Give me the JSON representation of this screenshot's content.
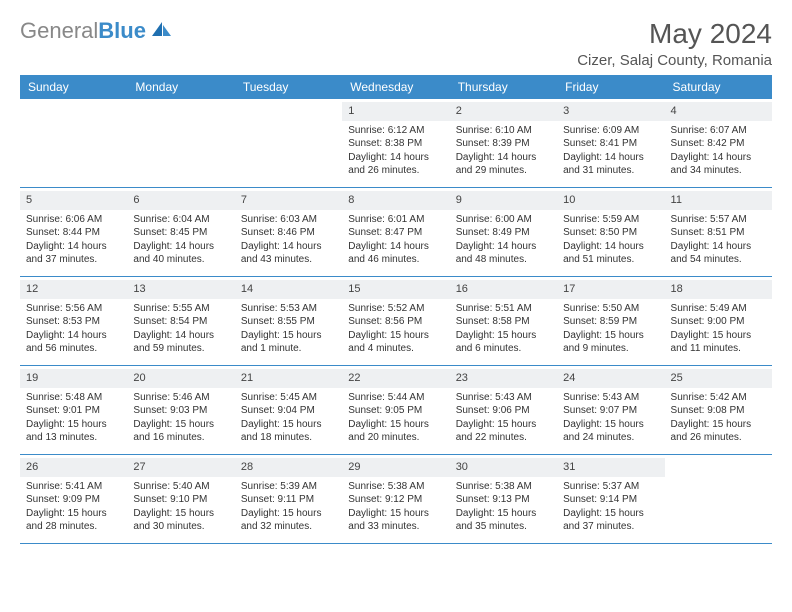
{
  "brand": {
    "word1": "General",
    "word2": "Blue"
  },
  "title": "May 2024",
  "location": "Cizer, Salaj County, Romania",
  "dayNames": [
    "Sunday",
    "Monday",
    "Tuesday",
    "Wednesday",
    "Thursday",
    "Friday",
    "Saturday"
  ],
  "colors": {
    "headerBar": "#3b8bc9",
    "dayNumBg": "#eef0f2",
    "text": "#333333",
    "logoGray": "#888888"
  },
  "weeks": [
    [
      {
        "n": "",
        "sr": "",
        "ss": "",
        "d1": "",
        "d2": ""
      },
      {
        "n": "",
        "sr": "",
        "ss": "",
        "d1": "",
        "d2": ""
      },
      {
        "n": "",
        "sr": "",
        "ss": "",
        "d1": "",
        "d2": ""
      },
      {
        "n": "1",
        "sr": "Sunrise: 6:12 AM",
        "ss": "Sunset: 8:38 PM",
        "d1": "Daylight: 14 hours",
        "d2": "and 26 minutes."
      },
      {
        "n": "2",
        "sr": "Sunrise: 6:10 AM",
        "ss": "Sunset: 8:39 PM",
        "d1": "Daylight: 14 hours",
        "d2": "and 29 minutes."
      },
      {
        "n": "3",
        "sr": "Sunrise: 6:09 AM",
        "ss": "Sunset: 8:41 PM",
        "d1": "Daylight: 14 hours",
        "d2": "and 31 minutes."
      },
      {
        "n": "4",
        "sr": "Sunrise: 6:07 AM",
        "ss": "Sunset: 8:42 PM",
        "d1": "Daylight: 14 hours",
        "d2": "and 34 minutes."
      }
    ],
    [
      {
        "n": "5",
        "sr": "Sunrise: 6:06 AM",
        "ss": "Sunset: 8:44 PM",
        "d1": "Daylight: 14 hours",
        "d2": "and 37 minutes."
      },
      {
        "n": "6",
        "sr": "Sunrise: 6:04 AM",
        "ss": "Sunset: 8:45 PM",
        "d1": "Daylight: 14 hours",
        "d2": "and 40 minutes."
      },
      {
        "n": "7",
        "sr": "Sunrise: 6:03 AM",
        "ss": "Sunset: 8:46 PM",
        "d1": "Daylight: 14 hours",
        "d2": "and 43 minutes."
      },
      {
        "n": "8",
        "sr": "Sunrise: 6:01 AM",
        "ss": "Sunset: 8:47 PM",
        "d1": "Daylight: 14 hours",
        "d2": "and 46 minutes."
      },
      {
        "n": "9",
        "sr": "Sunrise: 6:00 AM",
        "ss": "Sunset: 8:49 PM",
        "d1": "Daylight: 14 hours",
        "d2": "and 48 minutes."
      },
      {
        "n": "10",
        "sr": "Sunrise: 5:59 AM",
        "ss": "Sunset: 8:50 PM",
        "d1": "Daylight: 14 hours",
        "d2": "and 51 minutes."
      },
      {
        "n": "11",
        "sr": "Sunrise: 5:57 AM",
        "ss": "Sunset: 8:51 PM",
        "d1": "Daylight: 14 hours",
        "d2": "and 54 minutes."
      }
    ],
    [
      {
        "n": "12",
        "sr": "Sunrise: 5:56 AM",
        "ss": "Sunset: 8:53 PM",
        "d1": "Daylight: 14 hours",
        "d2": "and 56 minutes."
      },
      {
        "n": "13",
        "sr": "Sunrise: 5:55 AM",
        "ss": "Sunset: 8:54 PM",
        "d1": "Daylight: 14 hours",
        "d2": "and 59 minutes."
      },
      {
        "n": "14",
        "sr": "Sunrise: 5:53 AM",
        "ss": "Sunset: 8:55 PM",
        "d1": "Daylight: 15 hours",
        "d2": "and 1 minute."
      },
      {
        "n": "15",
        "sr": "Sunrise: 5:52 AM",
        "ss": "Sunset: 8:56 PM",
        "d1": "Daylight: 15 hours",
        "d2": "and 4 minutes."
      },
      {
        "n": "16",
        "sr": "Sunrise: 5:51 AM",
        "ss": "Sunset: 8:58 PM",
        "d1": "Daylight: 15 hours",
        "d2": "and 6 minutes."
      },
      {
        "n": "17",
        "sr": "Sunrise: 5:50 AM",
        "ss": "Sunset: 8:59 PM",
        "d1": "Daylight: 15 hours",
        "d2": "and 9 minutes."
      },
      {
        "n": "18",
        "sr": "Sunrise: 5:49 AM",
        "ss": "Sunset: 9:00 PM",
        "d1": "Daylight: 15 hours",
        "d2": "and 11 minutes."
      }
    ],
    [
      {
        "n": "19",
        "sr": "Sunrise: 5:48 AM",
        "ss": "Sunset: 9:01 PM",
        "d1": "Daylight: 15 hours",
        "d2": "and 13 minutes."
      },
      {
        "n": "20",
        "sr": "Sunrise: 5:46 AM",
        "ss": "Sunset: 9:03 PM",
        "d1": "Daylight: 15 hours",
        "d2": "and 16 minutes."
      },
      {
        "n": "21",
        "sr": "Sunrise: 5:45 AM",
        "ss": "Sunset: 9:04 PM",
        "d1": "Daylight: 15 hours",
        "d2": "and 18 minutes."
      },
      {
        "n": "22",
        "sr": "Sunrise: 5:44 AM",
        "ss": "Sunset: 9:05 PM",
        "d1": "Daylight: 15 hours",
        "d2": "and 20 minutes."
      },
      {
        "n": "23",
        "sr": "Sunrise: 5:43 AM",
        "ss": "Sunset: 9:06 PM",
        "d1": "Daylight: 15 hours",
        "d2": "and 22 minutes."
      },
      {
        "n": "24",
        "sr": "Sunrise: 5:43 AM",
        "ss": "Sunset: 9:07 PM",
        "d1": "Daylight: 15 hours",
        "d2": "and 24 minutes."
      },
      {
        "n": "25",
        "sr": "Sunrise: 5:42 AM",
        "ss": "Sunset: 9:08 PM",
        "d1": "Daylight: 15 hours",
        "d2": "and 26 minutes."
      }
    ],
    [
      {
        "n": "26",
        "sr": "Sunrise: 5:41 AM",
        "ss": "Sunset: 9:09 PM",
        "d1": "Daylight: 15 hours",
        "d2": "and 28 minutes."
      },
      {
        "n": "27",
        "sr": "Sunrise: 5:40 AM",
        "ss": "Sunset: 9:10 PM",
        "d1": "Daylight: 15 hours",
        "d2": "and 30 minutes."
      },
      {
        "n": "28",
        "sr": "Sunrise: 5:39 AM",
        "ss": "Sunset: 9:11 PM",
        "d1": "Daylight: 15 hours",
        "d2": "and 32 minutes."
      },
      {
        "n": "29",
        "sr": "Sunrise: 5:38 AM",
        "ss": "Sunset: 9:12 PM",
        "d1": "Daylight: 15 hours",
        "d2": "and 33 minutes."
      },
      {
        "n": "30",
        "sr": "Sunrise: 5:38 AM",
        "ss": "Sunset: 9:13 PM",
        "d1": "Daylight: 15 hours",
        "d2": "and 35 minutes."
      },
      {
        "n": "31",
        "sr": "Sunrise: 5:37 AM",
        "ss": "Sunset: 9:14 PM",
        "d1": "Daylight: 15 hours",
        "d2": "and 37 minutes."
      },
      {
        "n": "",
        "sr": "",
        "ss": "",
        "d1": "",
        "d2": ""
      }
    ]
  ]
}
